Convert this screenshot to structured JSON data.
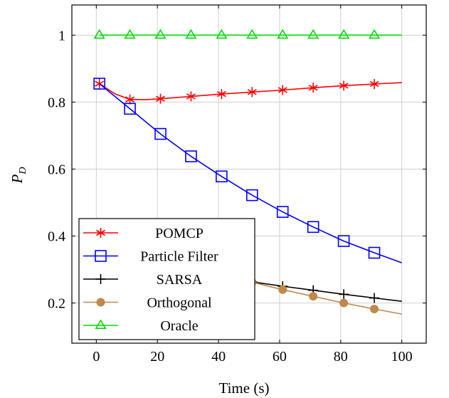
{
  "chart_data": {
    "type": "line",
    "title": "",
    "xlabel": "Time (s)",
    "ylabel_main": "P",
    "ylabel_sub": "D",
    "xlim": [
      -8,
      108
    ],
    "ylim": [
      0.08,
      1.09
    ],
    "xticks": [
      0,
      20,
      40,
      60,
      80,
      100
    ],
    "yticks": [
      0.2,
      0.4,
      0.6,
      0.8,
      1
    ],
    "xtick_labels": [
      "0",
      "20",
      "40",
      "60",
      "80",
      "100"
    ],
    "ytick_labels": [
      "0.2",
      "0.4",
      "0.6",
      "0.8",
      "1"
    ],
    "grid": true,
    "legend_position": "bottom-left",
    "series": [
      {
        "name": "POMCP",
        "color": "#ff0000",
        "marker": "star",
        "line": [
          [
            1,
            0.855
          ],
          [
            6,
            0.825
          ],
          [
            11,
            0.808
          ],
          [
            16,
            0.807
          ],
          [
            21,
            0.81
          ],
          [
            31,
            0.817
          ],
          [
            41,
            0.824
          ],
          [
            51,
            0.83
          ],
          [
            61,
            0.836
          ],
          [
            71,
            0.843
          ],
          [
            81,
            0.849
          ],
          [
            91,
            0.854
          ],
          [
            100,
            0.858
          ]
        ],
        "markers": [
          [
            1,
            0.855
          ],
          [
            11,
            0.808
          ],
          [
            21,
            0.81
          ],
          [
            31,
            0.817
          ],
          [
            41,
            0.824
          ],
          [
            51,
            0.83
          ],
          [
            61,
            0.836
          ],
          [
            71,
            0.843
          ],
          [
            81,
            0.849
          ],
          [
            91,
            0.854
          ]
        ]
      },
      {
        "name": "Particle Filter",
        "color": "#0000ff",
        "marker": "square",
        "line": [
          [
            1,
            0.855
          ],
          [
            11,
            0.78
          ],
          [
            21,
            0.705
          ],
          [
            31,
            0.638
          ],
          [
            41,
            0.578
          ],
          [
            51,
            0.522
          ],
          [
            61,
            0.472
          ],
          [
            71,
            0.427
          ],
          [
            81,
            0.385
          ],
          [
            91,
            0.35
          ],
          [
            100,
            0.32
          ]
        ],
        "markers": [
          [
            1,
            0.855
          ],
          [
            11,
            0.78
          ],
          [
            21,
            0.705
          ],
          [
            31,
            0.638
          ],
          [
            41,
            0.578
          ],
          [
            51,
            0.522
          ],
          [
            61,
            0.472
          ],
          [
            71,
            0.427
          ],
          [
            81,
            0.385
          ],
          [
            91,
            0.35
          ]
        ]
      },
      {
        "name": "SARSA",
        "color": "#000000",
        "marker": "plus",
        "line": [
          [
            41,
            0.27
          ],
          [
            51,
            0.263
          ],
          [
            61,
            0.25
          ],
          [
            71,
            0.238
          ],
          [
            81,
            0.226
          ],
          [
            91,
            0.215
          ],
          [
            100,
            0.205
          ]
        ],
        "markers": [
          [
            51,
            0.263
          ],
          [
            61,
            0.25
          ],
          [
            71,
            0.238
          ],
          [
            81,
            0.226
          ],
          [
            91,
            0.215
          ]
        ]
      },
      {
        "name": "Orthogonal",
        "color": "#c0884a",
        "marker": "circle",
        "line": [
          [
            41,
            0.28
          ],
          [
            51,
            0.262
          ],
          [
            61,
            0.24
          ],
          [
            71,
            0.22
          ],
          [
            81,
            0.2
          ],
          [
            91,
            0.182
          ],
          [
            100,
            0.167
          ]
        ],
        "markers": [
          [
            51,
            0.262
          ],
          [
            61,
            0.24
          ],
          [
            71,
            0.22
          ],
          [
            81,
            0.2
          ],
          [
            91,
            0.182
          ]
        ]
      },
      {
        "name": "Oracle",
        "color": "#00dd00",
        "marker": "triangle",
        "line": [
          [
            1,
            1.0
          ],
          [
            100,
            1.0
          ]
        ],
        "markers": [
          [
            1,
            1.0
          ],
          [
            11,
            1.0
          ],
          [
            21,
            1.0
          ],
          [
            31,
            1.0
          ],
          [
            41,
            1.0
          ],
          [
            51,
            1.0
          ],
          [
            61,
            1.0
          ],
          [
            71,
            1.0
          ],
          [
            81,
            1.0
          ],
          [
            91,
            1.0
          ]
        ]
      }
    ]
  }
}
